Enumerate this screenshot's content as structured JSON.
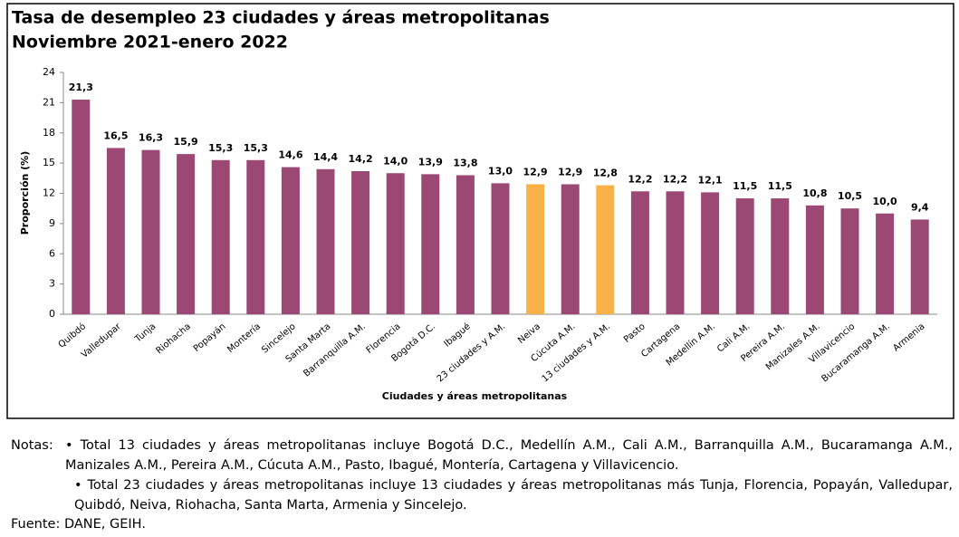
{
  "chart_data": {
    "type": "bar",
    "title": "Tasa de desempleo 23 ciudades y áreas metropolitanas",
    "subtitle": "Noviembre 2021-enero 2022",
    "y_label": "Proporción (%)",
    "x_label": "Ciudades y áreas metropolitanas",
    "categories": [
      "Quibdó",
      "Valledupar",
      "Tunja",
      "Riohacha",
      "Popayán",
      "Montería",
      "Sincelejo",
      "Santa Marta",
      "Barranquilla A.M.",
      "Florencia",
      "Bogotá D.C.",
      "Ibagué",
      "23 ciudades y A.M.",
      "Neiva",
      "Cúcuta A.M.",
      "13 ciudades y A.M.",
      "Pasto",
      "Cartagena",
      "Medellín A.M.",
      "Cali A.M.",
      "Pereira A.M.",
      "Manizales A.M.",
      "Villavicencio",
      "Bucaramanga A.M.",
      "Armenia"
    ],
    "values": [
      21.3,
      16.5,
      16.3,
      15.9,
      15.3,
      15.3,
      14.6,
      14.4,
      14.2,
      14.0,
      13.9,
      13.8,
      13.0,
      12.9,
      12.9,
      12.8,
      12.2,
      12.2,
      12.1,
      11.5,
      11.5,
      10.8,
      10.5,
      10.0,
      9.4
    ],
    "value_labels": [
      "21,3",
      "16,5",
      "16,3",
      "15,9",
      "15,3",
      "15,3",
      "14,6",
      "14,4",
      "14,2",
      "14,0",
      "13,9",
      "13,8",
      "13,0",
      "12,9",
      "12,9",
      "12,8",
      "12,2",
      "12,2",
      "12,1",
      "11,5",
      "11,5",
      "10,8",
      "10,5",
      "10,0",
      "9,4"
    ],
    "colors": [
      "#9b4874",
      "#9b4874",
      "#9b4874",
      "#9b4874",
      "#9b4874",
      "#9b4874",
      "#9b4874",
      "#9b4874",
      "#9b4874",
      "#9b4874",
      "#9b4874",
      "#9b4874",
      "#9b4874",
      "#f9b248",
      "#9b4874",
      "#f9b248",
      "#9b4874",
      "#9b4874",
      "#9b4874",
      "#9b4874",
      "#9b4874",
      "#9b4874",
      "#9b4874",
      "#9b4874",
      "#9b4874"
    ],
    "ylim": [
      0,
      24
    ],
    "yticks": [
      0,
      3,
      6,
      9,
      12,
      15,
      18,
      21,
      24
    ]
  },
  "notes": {
    "label": "Notas:",
    "items": [
      "• Total 13 ciudades y áreas metropolitanas incluye Bogotá D.C., Medellín A.M., Cali A.M., Barranquilla A.M., Bucaramanga A.M., Manizales A.M., Pereira A.M., Cúcuta A.M., Pasto, Ibagué, Montería, Cartagena y Villavicencio.",
      "• Total 23 ciudades y áreas metropolitanas incluye 13 ciudades y áreas metropolitanas más Tunja, Florencia, Popayán, Valledupar, Quibdó, Neiva, Riohacha, Santa Marta, Armenia y Sincelejo."
    ]
  },
  "source": "Fuente: DANE, GEIH."
}
